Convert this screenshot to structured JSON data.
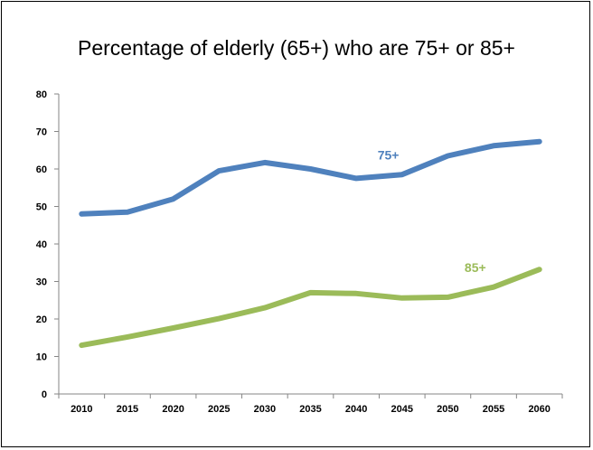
{
  "chart_data": {
    "type": "line",
    "title": "Percentage of elderly (65+) who are 75+ or 85+",
    "xlabel": "",
    "ylabel": "",
    "x": [
      "2010",
      "2015",
      "2020",
      "2025",
      "2030",
      "2035",
      "2040",
      "2045",
      "2050",
      "2055",
      "2060"
    ],
    "ylim": [
      0,
      80
    ],
    "yticks": [
      0,
      10,
      20,
      30,
      40,
      50,
      60,
      70,
      80
    ],
    "grid": false,
    "series": [
      {
        "name": "75+",
        "color": "#4F81BD",
        "values": [
          48.0,
          48.5,
          52.0,
          59.5,
          61.7,
          60.0,
          57.5,
          58.5,
          63.5,
          66.2,
          67.3
        ],
        "label_at": 6.7,
        "label_value": 62.5
      },
      {
        "name": "85+",
        "color": "#9BBB59",
        "values": [
          13.0,
          15.2,
          17.6,
          20.1,
          23.0,
          27.0,
          26.8,
          25.6,
          25.8,
          28.5,
          33.2
        ],
        "label_at": 8.6,
        "label_value": 32.5
      }
    ]
  }
}
